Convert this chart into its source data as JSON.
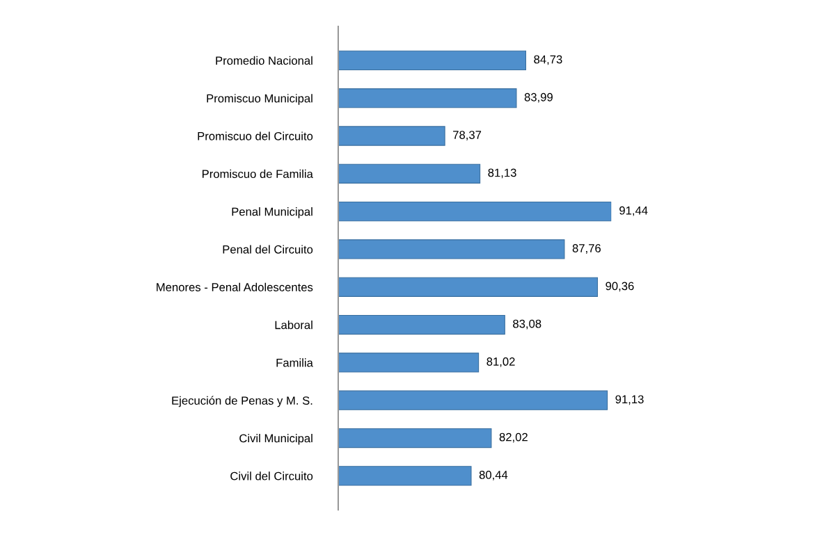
{
  "chart_data": {
    "type": "bar",
    "orientation": "horizontal",
    "categories": [
      "Promedio Nacional",
      "Promiscuo Municipal",
      "Promiscuo del Circuito",
      "Promiscuo de Familia",
      "Penal Municipal",
      "Penal del Circuito",
      "Menores - Penal Adolescentes",
      "Laboral",
      "Familia",
      "Ejecución de Penas y M. S.",
      "Civil Municipal",
      "Civil del Circuito"
    ],
    "values": [
      84.73,
      83.99,
      78.37,
      81.13,
      91.44,
      87.76,
      90.36,
      83.08,
      81.02,
      91.13,
      82.02,
      80.44
    ],
    "value_labels": [
      "84,73",
      "83,99",
      "78,37",
      "81,13",
      "91,44",
      "87,76",
      "90,36",
      "83,08",
      "81,02",
      "91,13",
      "82,02",
      "80,44"
    ],
    "color": "#4f8fcc",
    "xlim": [
      70,
      91.44
    ],
    "tick_labels": "y",
    "grid": false,
    "legend": false
  }
}
